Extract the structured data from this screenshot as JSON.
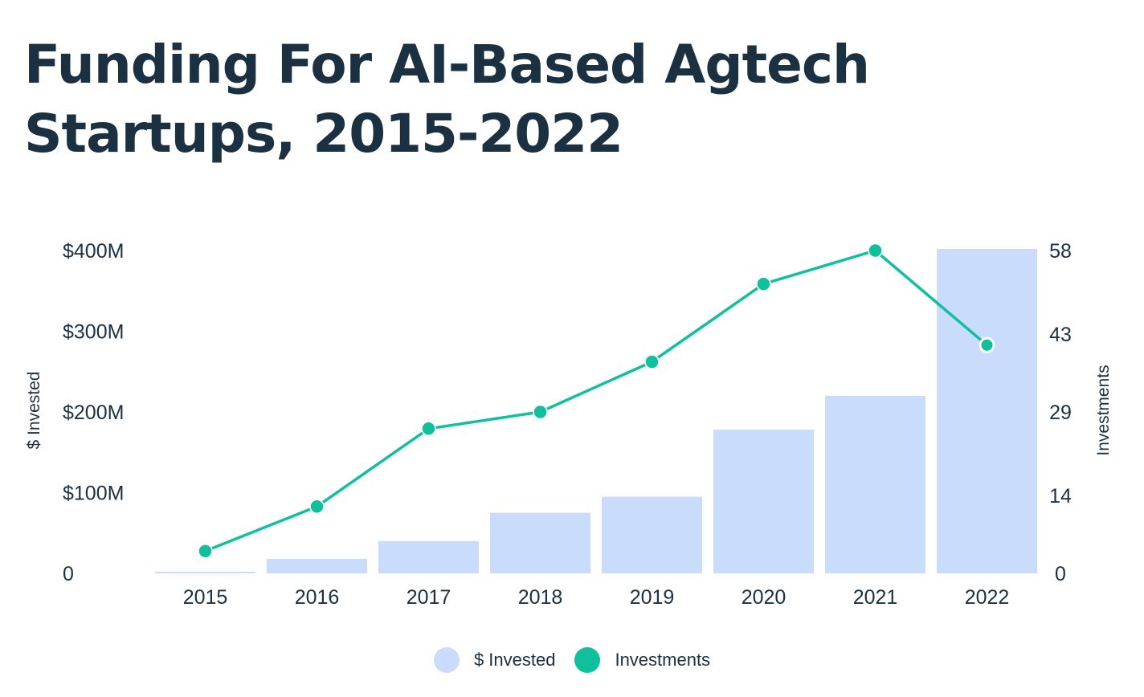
{
  "chart_data": {
    "type": "bar",
    "title": "Funding For AI-Based Agtech Startups, 2015-2022",
    "categories": [
      "2015",
      "2016",
      "2017",
      "2018",
      "2019",
      "2020",
      "2021",
      "2022"
    ],
    "series": [
      {
        "name": "$ Invested",
        "type": "bar",
        "axis": "left",
        "color": "#cadcfc",
        "values": [
          2,
          18,
          40,
          75,
          95,
          178,
          220,
          402
        ]
      },
      {
        "name": "Investments",
        "type": "line",
        "axis": "right",
        "color": "#10bf9c",
        "values": [
          4,
          12,
          26,
          29,
          38,
          52,
          58,
          41
        ]
      }
    ],
    "ylabel": "$ Invested",
    "ylabel_right": "Investments",
    "ylim": [
      0,
      400
    ],
    "ylim_right": [
      0,
      58
    ],
    "yticks": [
      {
        "value": 0,
        "label": "0"
      },
      {
        "value": 100,
        "label": "$100M"
      },
      {
        "value": 200,
        "label": "$200M"
      },
      {
        "value": 300,
        "label": "$300M"
      },
      {
        "value": 400,
        "label": "$400M"
      }
    ],
    "yticks_right": [
      {
        "value": 0,
        "label": "0"
      },
      {
        "value": 14,
        "label": "14"
      },
      {
        "value": 29,
        "label": "29"
      },
      {
        "value": 43,
        "label": "43"
      },
      {
        "value": 58,
        "label": "58"
      }
    ],
    "grid": false,
    "legend": "bottom-center"
  }
}
